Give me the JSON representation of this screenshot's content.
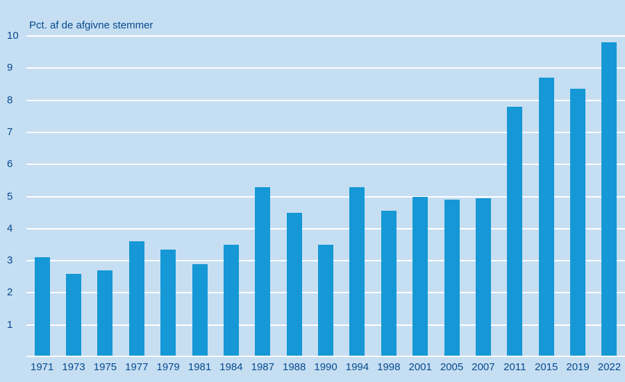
{
  "chart_data": {
    "type": "bar",
    "title": "Pct. af de afgivne stemmer",
    "categories": [
      "1971",
      "1973",
      "1975",
      "1977",
      "1979",
      "1981",
      "1984",
      "1987",
      "1988",
      "1990",
      "1994",
      "1998",
      "2001",
      "2005",
      "2007",
      "2011",
      "2015",
      "2019",
      "2022"
    ],
    "values": [
      3.1,
      2.6,
      2.7,
      3.6,
      3.35,
      2.9,
      3.5,
      5.3,
      4.5,
      3.5,
      5.3,
      4.55,
      5.0,
      4.9,
      4.95,
      7.8,
      8.7,
      8.35,
      9.8
    ],
    "xlabel": "",
    "ylabel": "Pct. af de afgivne stemmer",
    "ylim": [
      0,
      10
    ],
    "y_ticks": [
      1,
      2,
      3,
      4,
      5,
      6,
      7,
      8,
      9,
      10
    ],
    "grid": true,
    "legend": "none",
    "colors": {
      "background": "#c6def2",
      "bar": "#1598d5",
      "text": "#05498f",
      "gridline": "#ffffff"
    }
  }
}
